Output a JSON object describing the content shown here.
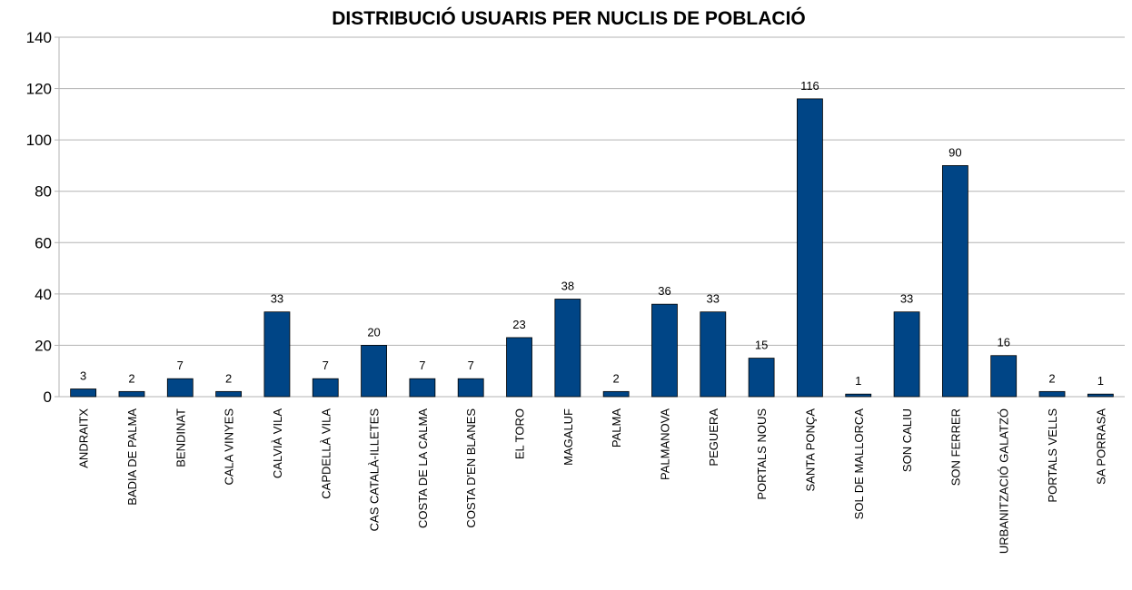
{
  "chart_data": {
    "type": "bar",
    "title": "DISTRIBUCIÓ USUARIS PER NUCLIS DE POBLACIÓ",
    "categories": [
      "ANDRAITX",
      "BADIA DE PALMA",
      "BENDINAT",
      "CALA VINYES",
      "CALVIÀ VILA",
      "CAPDELLÀ VILA",
      "CAS CATALÀ-ILLETES",
      "COSTA DE LA CALMA",
      "COSTA D'EN BLANES",
      "EL TORO",
      "MAGALUF",
      "PALMA",
      "PALMANOVA",
      "PEGUERA",
      "PORTALS NOUS",
      "SANTA PONÇA",
      "SOL DE MALLORCA",
      "SON CALIU",
      "SON FERRER",
      "URBANITZACIÓ GALATZÓ",
      "PORTALS VELLS",
      "SA PORRASA"
    ],
    "values": [
      3,
      2,
      7,
      2,
      33,
      7,
      20,
      7,
      7,
      23,
      38,
      2,
      36,
      33,
      15,
      116,
      1,
      33,
      90,
      16,
      2,
      1
    ],
    "color": "#004586",
    "ylim": [
      0,
      140
    ],
    "yticks": [
      0,
      20,
      40,
      60,
      80,
      100,
      120,
      140
    ],
    "grid": true
  }
}
